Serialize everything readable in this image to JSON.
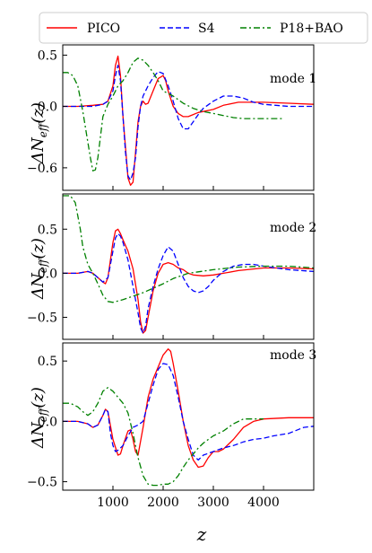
{
  "chart_data": {
    "type": "line",
    "xlabel": "z",
    "xlim": [
      0,
      5000
    ],
    "xticks": [
      1000,
      2000,
      3000,
      4000
    ],
    "legend": {
      "placement": "top",
      "entries": [
        {
          "name": "PICO",
          "color": "#ff0000",
          "dash": "solid"
        },
        {
          "name": "S4",
          "color": "#0000ff",
          "dash": "dashed"
        },
        {
          "name": "P18+BAO",
          "color": "#008000",
          "dash": "dashdot"
        }
      ]
    },
    "panels": [
      {
        "label": "mode 1",
        "ylabel": "ΔN_eff(z)",
        "ylabel_main": "ΔN",
        "ylabel_sub": "eff",
        "ylabel_tail": "(z)",
        "ylim": [
          -0.82,
          0.6
        ],
        "yticks": [
          0.5,
          0.0,
          -0.6
        ],
        "ytick_labels": [
          "0.5",
          "0.0",
          "−0.6"
        ],
        "series": [
          {
            "name": "PICO",
            "x": [
              0,
              300,
              600,
              800,
              900,
              1000,
              1050,
              1100,
              1150,
              1200,
              1250,
              1300,
              1350,
              1400,
              1450,
              1500,
              1550,
              1600,
              1650,
              1700,
              1800,
              1900,
              2000,
              2050,
              2100,
              2200,
              2300,
              2400,
              2500,
              2600,
              2700,
              2800,
              3000,
              3200,
              3500,
              4000,
              4500,
              5000
            ],
            "y": [
              0.0,
              0.0,
              0.01,
              0.02,
              0.05,
              0.2,
              0.4,
              0.49,
              0.3,
              -0.1,
              -0.4,
              -0.7,
              -0.77,
              -0.74,
              -0.45,
              -0.15,
              0.0,
              0.05,
              0.02,
              0.03,
              0.15,
              0.27,
              0.3,
              0.25,
              0.15,
              0.0,
              -0.07,
              -0.1,
              -0.1,
              -0.08,
              -0.06,
              -0.05,
              -0.03,
              0.01,
              0.04,
              0.04,
              0.03,
              0.02
            ]
          },
          {
            "name": "S4",
            "x": [
              0,
              300,
              600,
              800,
              900,
              1000,
              1050,
              1100,
              1150,
              1200,
              1250,
              1300,
              1350,
              1400,
              1450,
              1500,
              1550,
              1600,
              1700,
              1800,
              1900,
              2000,
              2100,
              2200,
              2300,
              2400,
              2500,
              2600,
              2700,
              2800,
              3000,
              3200,
              3400,
              3600,
              3800,
              4000,
              4500,
              5000
            ],
            "y": [
              0.0,
              0.0,
              0.0,
              0.02,
              0.05,
              0.15,
              0.3,
              0.4,
              0.25,
              -0.1,
              -0.45,
              -0.68,
              -0.72,
              -0.65,
              -0.5,
              -0.2,
              0.0,
              0.1,
              0.2,
              0.28,
              0.34,
              0.32,
              0.2,
              0.05,
              -0.12,
              -0.22,
              -0.22,
              -0.15,
              -0.08,
              -0.02,
              0.05,
              0.1,
              0.1,
              0.08,
              0.04,
              0.02,
              0.0,
              0.0
            ]
          },
          {
            "name": "P18+BAO",
            "x": [
              0,
              100,
              200,
              300,
              400,
              500,
              550,
              600,
              650,
              700,
              750,
              800,
              900,
              1000,
              1100,
              1200,
              1300,
              1400,
              1500,
              1600,
              1700,
              1800,
              1900,
              2000,
              2200,
              2400,
              2600,
              2800,
              3000,
              3200,
              3400,
              3600,
              3800,
              4000,
              4200,
              4400
            ],
            "y": [
              0.33,
              0.33,
              0.3,
              0.2,
              -0.05,
              -0.35,
              -0.5,
              -0.63,
              -0.62,
              -0.5,
              -0.3,
              -0.1,
              0.02,
              0.1,
              0.2,
              0.25,
              0.33,
              0.43,
              0.47,
              0.45,
              0.4,
              0.33,
              0.25,
              0.15,
              0.1,
              0.03,
              -0.02,
              -0.05,
              -0.07,
              -0.09,
              -0.11,
              -0.12,
              -0.12,
              -0.12,
              -0.12,
              -0.12
            ]
          }
        ]
      },
      {
        "label": "mode 2",
        "ylabel": "ΔN_eff(z)",
        "ylabel_main": "ΔN",
        "ylabel_sub": "eff",
        "ylabel_tail": "(z)",
        "ylim": [
          -0.75,
          0.9
        ],
        "yticks": [
          0.5,
          0.0,
          -0.5
        ],
        "ytick_labels": [
          "0.5",
          "0.0",
          "−0.5"
        ],
        "series": [
          {
            "name": "PICO",
            "x": [
              0,
              300,
              500,
              600,
              700,
              800,
              850,
              900,
              950,
              1000,
              1050,
              1100,
              1150,
              1200,
              1300,
              1400,
              1500,
              1550,
              1600,
              1650,
              1700,
              1800,
              1900,
              2000,
              2100,
              2200,
              2300,
              2400,
              2500,
              2600,
              2800,
              3000,
              3200,
              3500,
              4000,
              4500,
              5000
            ],
            "y": [
              0.0,
              0.0,
              0.02,
              0.0,
              -0.05,
              -0.1,
              -0.12,
              -0.05,
              0.15,
              0.35,
              0.48,
              0.5,
              0.45,
              0.38,
              0.25,
              0.05,
              -0.3,
              -0.55,
              -0.68,
              -0.65,
              -0.5,
              -0.2,
              0.0,
              0.1,
              0.12,
              0.1,
              0.06,
              0.04,
              0.0,
              -0.02,
              -0.03,
              -0.02,
              0.0,
              0.03,
              0.06,
              0.06,
              0.05
            ]
          },
          {
            "name": "S4",
            "x": [
              0,
              300,
              500,
              600,
              700,
              800,
              900,
              1000,
              1050,
              1100,
              1150,
              1200,
              1300,
              1400,
              1500,
              1550,
              1600,
              1650,
              1700,
              1800,
              1900,
              2000,
              2100,
              2200,
              2300,
              2400,
              2500,
              2600,
              2700,
              2800,
              2900,
              3000,
              3200,
              3400,
              3600,
              3800,
              4000,
              4500,
              5000
            ],
            "y": [
              0.0,
              0.0,
              0.02,
              0.0,
              -0.05,
              -0.1,
              -0.05,
              0.25,
              0.4,
              0.45,
              0.42,
              0.35,
              0.15,
              -0.15,
              -0.45,
              -0.62,
              -0.68,
              -0.6,
              -0.4,
              -0.15,
              0.05,
              0.2,
              0.3,
              0.25,
              0.1,
              -0.05,
              -0.15,
              -0.2,
              -0.22,
              -0.2,
              -0.15,
              -0.08,
              0.02,
              0.08,
              0.1,
              0.1,
              0.08,
              0.04,
              0.02
            ]
          },
          {
            "name": "P18+BAO",
            "x": [
              0,
              150,
              250,
              300,
              350,
              400,
              500,
              600,
              700,
              800,
              900,
              1000,
              1200,
              1400,
              1600,
              1800,
              2000,
              2200,
              2500,
              3000,
              3500,
              4000,
              4500,
              5000
            ],
            "y": [
              0.88,
              0.88,
              0.8,
              0.65,
              0.5,
              0.3,
              0.1,
              0.0,
              -0.12,
              -0.25,
              -0.32,
              -0.33,
              -0.3,
              -0.26,
              -0.22,
              -0.17,
              -0.12,
              -0.06,
              0.0,
              0.04,
              0.07,
              0.08,
              0.08,
              0.06
            ]
          }
        ]
      },
      {
        "label": "mode 3",
        "ylabel": "ΔN_eff(z)",
        "ylabel_main": "ΔN",
        "ylabel_sub": "eff",
        "ylabel_tail": "(z)",
        "ylim": [
          -0.57,
          0.65
        ],
        "yticks": [
          0.5,
          0.0,
          -0.5
        ],
        "ytick_labels": [
          "0.5",
          "0.0",
          "−0.5"
        ],
        "series": [
          {
            "name": "PICO",
            "x": [
              0,
              300,
              500,
              600,
              700,
              800,
              850,
              900,
              1000,
              1100,
              1150,
              1200,
              1300,
              1350,
              1400,
              1450,
              1500,
              1600,
              1700,
              1800,
              1900,
              2000,
              2100,
              2150,
              2200,
              2300,
              2400,
              2500,
              2600,
              2700,
              2800,
              2900,
              3000,
              3100,
              3200,
              3400,
              3600,
              3800,
              4000,
              4500,
              5000
            ],
            "y": [
              0.0,
              0.0,
              -0.02,
              -0.05,
              -0.03,
              0.05,
              0.1,
              0.08,
              -0.15,
              -0.28,
              -0.27,
              -0.2,
              -0.08,
              -0.07,
              -0.15,
              -0.25,
              -0.28,
              -0.05,
              0.2,
              0.35,
              0.45,
              0.55,
              0.6,
              0.58,
              0.48,
              0.25,
              0.0,
              -0.2,
              -0.32,
              -0.38,
              -0.37,
              -0.3,
              -0.25,
              -0.25,
              -0.23,
              -0.15,
              -0.05,
              0.0,
              0.02,
              0.03,
              0.03
            ]
          },
          {
            "name": "S4",
            "x": [
              0,
              300,
              500,
              600,
              700,
              800,
              850,
              900,
              950,
              1000,
              1050,
              1100,
              1200,
              1300,
              1400,
              1500,
              1600,
              1700,
              1800,
              1900,
              2000,
              2100,
              2200,
              2300,
              2400,
              2500,
              2600,
              2700,
              2800,
              3000,
              3200,
              3400,
              3600,
              3800,
              4000,
              4200,
              4500,
              4800,
              5000
            ],
            "y": [
              0.0,
              0.0,
              -0.02,
              -0.05,
              -0.03,
              0.05,
              0.1,
              0.08,
              -0.1,
              -0.2,
              -0.25,
              -0.24,
              -0.2,
              -0.12,
              -0.05,
              -0.03,
              0.0,
              0.15,
              0.3,
              0.43,
              0.48,
              0.47,
              0.38,
              0.2,
              0.0,
              -0.15,
              -0.28,
              -0.32,
              -0.28,
              -0.25,
              -0.22,
              -0.2,
              -0.17,
              -0.15,
              -0.14,
              -0.12,
              -0.1,
              -0.05,
              -0.04
            ]
          },
          {
            "name": "P18+BAO",
            "x": [
              0,
              150,
              300,
              400,
              500,
              600,
              700,
              800,
              900,
              1000,
              1100,
              1200,
              1300,
              1400,
              1500,
              1600,
              1700,
              1800,
              1900,
              2000,
              2100,
              2200,
              2300,
              2400,
              2500,
              2600,
              2700,
              2800,
              2900,
              3000,
              3200,
              3400,
              3600,
              3800,
              4000
            ],
            "y": [
              0.15,
              0.15,
              0.12,
              0.08,
              0.05,
              0.08,
              0.15,
              0.25,
              0.28,
              0.25,
              0.2,
              0.15,
              0.07,
              -0.1,
              -0.3,
              -0.45,
              -0.52,
              -0.53,
              -0.53,
              -0.52,
              -0.52,
              -0.5,
              -0.45,
              -0.38,
              -0.32,
              -0.27,
              -0.22,
              -0.18,
              -0.15,
              -0.12,
              -0.08,
              -0.02,
              0.02,
              0.02,
              0.02
            ]
          }
        ]
      }
    ]
  }
}
